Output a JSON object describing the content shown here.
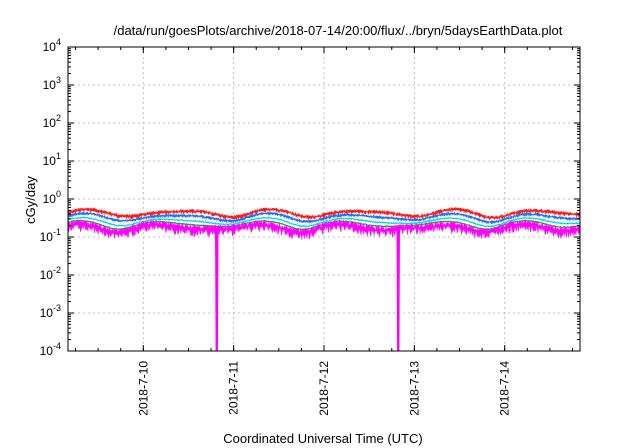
{
  "chart_data": {
    "type": "line",
    "title": "/data/run/goesPlots/archive/2018-07-14/20:00/flux/../bryn/5daysEarthData.plot",
    "xlabel": "Coordinated Universal Time (UTC)",
    "ylabel": "cGy/day",
    "y_scale": "log",
    "ylim_exponents": [
      -4,
      4
    ],
    "y_tick_base": "10",
    "y_tick_exponents": [
      "-4",
      "-3",
      "-2",
      "-1",
      "0",
      "1",
      "2",
      "3",
      "4"
    ],
    "xlim_days": [
      "2018-07-09 04:00",
      "2018-07-14 20:00"
    ],
    "x_ticks": [
      "2018-7-10",
      "2018-7-11",
      "2018-7-12",
      "2018-7-13",
      "2018-7-14"
    ],
    "grid": true,
    "legend": "none",
    "series": [
      {
        "color": "#ff1a1a",
        "level": 0.42,
        "noise": 0.14,
        "dips": [],
        "fill": true
      },
      {
        "color": "#1f6fff",
        "level": 0.33,
        "noise": 0.1,
        "dips": [],
        "fill": true
      },
      {
        "color": "#00d8d8",
        "level": 0.25,
        "noise": 0.06,
        "dips": [],
        "fill": false
      },
      {
        "color": "#2a9a2a",
        "level": 0.21,
        "noise": 0.05,
        "dips": [],
        "fill": false
      },
      {
        "color": "#ff00ff",
        "level": 0.17,
        "noise": 0.35,
        "dips": [
          "2018-07-10 19:30",
          "2018-07-12 19:45"
        ],
        "fill": true
      }
    ]
  }
}
